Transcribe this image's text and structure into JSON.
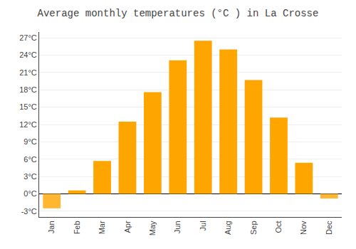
{
  "chart_data": {
    "type": "bar",
    "title": "Average monthly temperatures (°C ) in La Crosse",
    "categories": [
      "Jan",
      "Feb",
      "Mar",
      "Apr",
      "May",
      "Jun",
      "Jul",
      "Aug",
      "Sep",
      "Oct",
      "Nov",
      "Dec"
    ],
    "values": [
      -2.5,
      0.6,
      5.7,
      12.5,
      17.6,
      23.1,
      26.5,
      25.0,
      19.7,
      13.2,
      5.4,
      -0.8
    ],
    "colors": [
      "#FFB732",
      "#FFA500",
      "#FFA500",
      "#FFA500",
      "#FFA500",
      "#FFA500",
      "#FFA500",
      "#FFA500",
      "#FFA500",
      "#FFA500",
      "#FFA500",
      "#FFB732"
    ],
    "ylim": [
      -4,
      28
    ],
    "yticks": [
      {
        "value": -3,
        "label": "-3°C"
      },
      {
        "value": 0,
        "label": "0°C"
      },
      {
        "value": 3,
        "label": "3°C"
      },
      {
        "value": 6,
        "label": "6°C"
      },
      {
        "value": 9,
        "label": "9°C"
      },
      {
        "value": 12,
        "label": "12°C"
      },
      {
        "value": 15,
        "label": "15°C"
      },
      {
        "value": 18,
        "label": "18°C"
      },
      {
        "value": 21,
        "label": "21°C"
      },
      {
        "value": 24,
        "label": "24°C"
      },
      {
        "value": 27,
        "label": "27°C"
      }
    ],
    "grid": true
  }
}
